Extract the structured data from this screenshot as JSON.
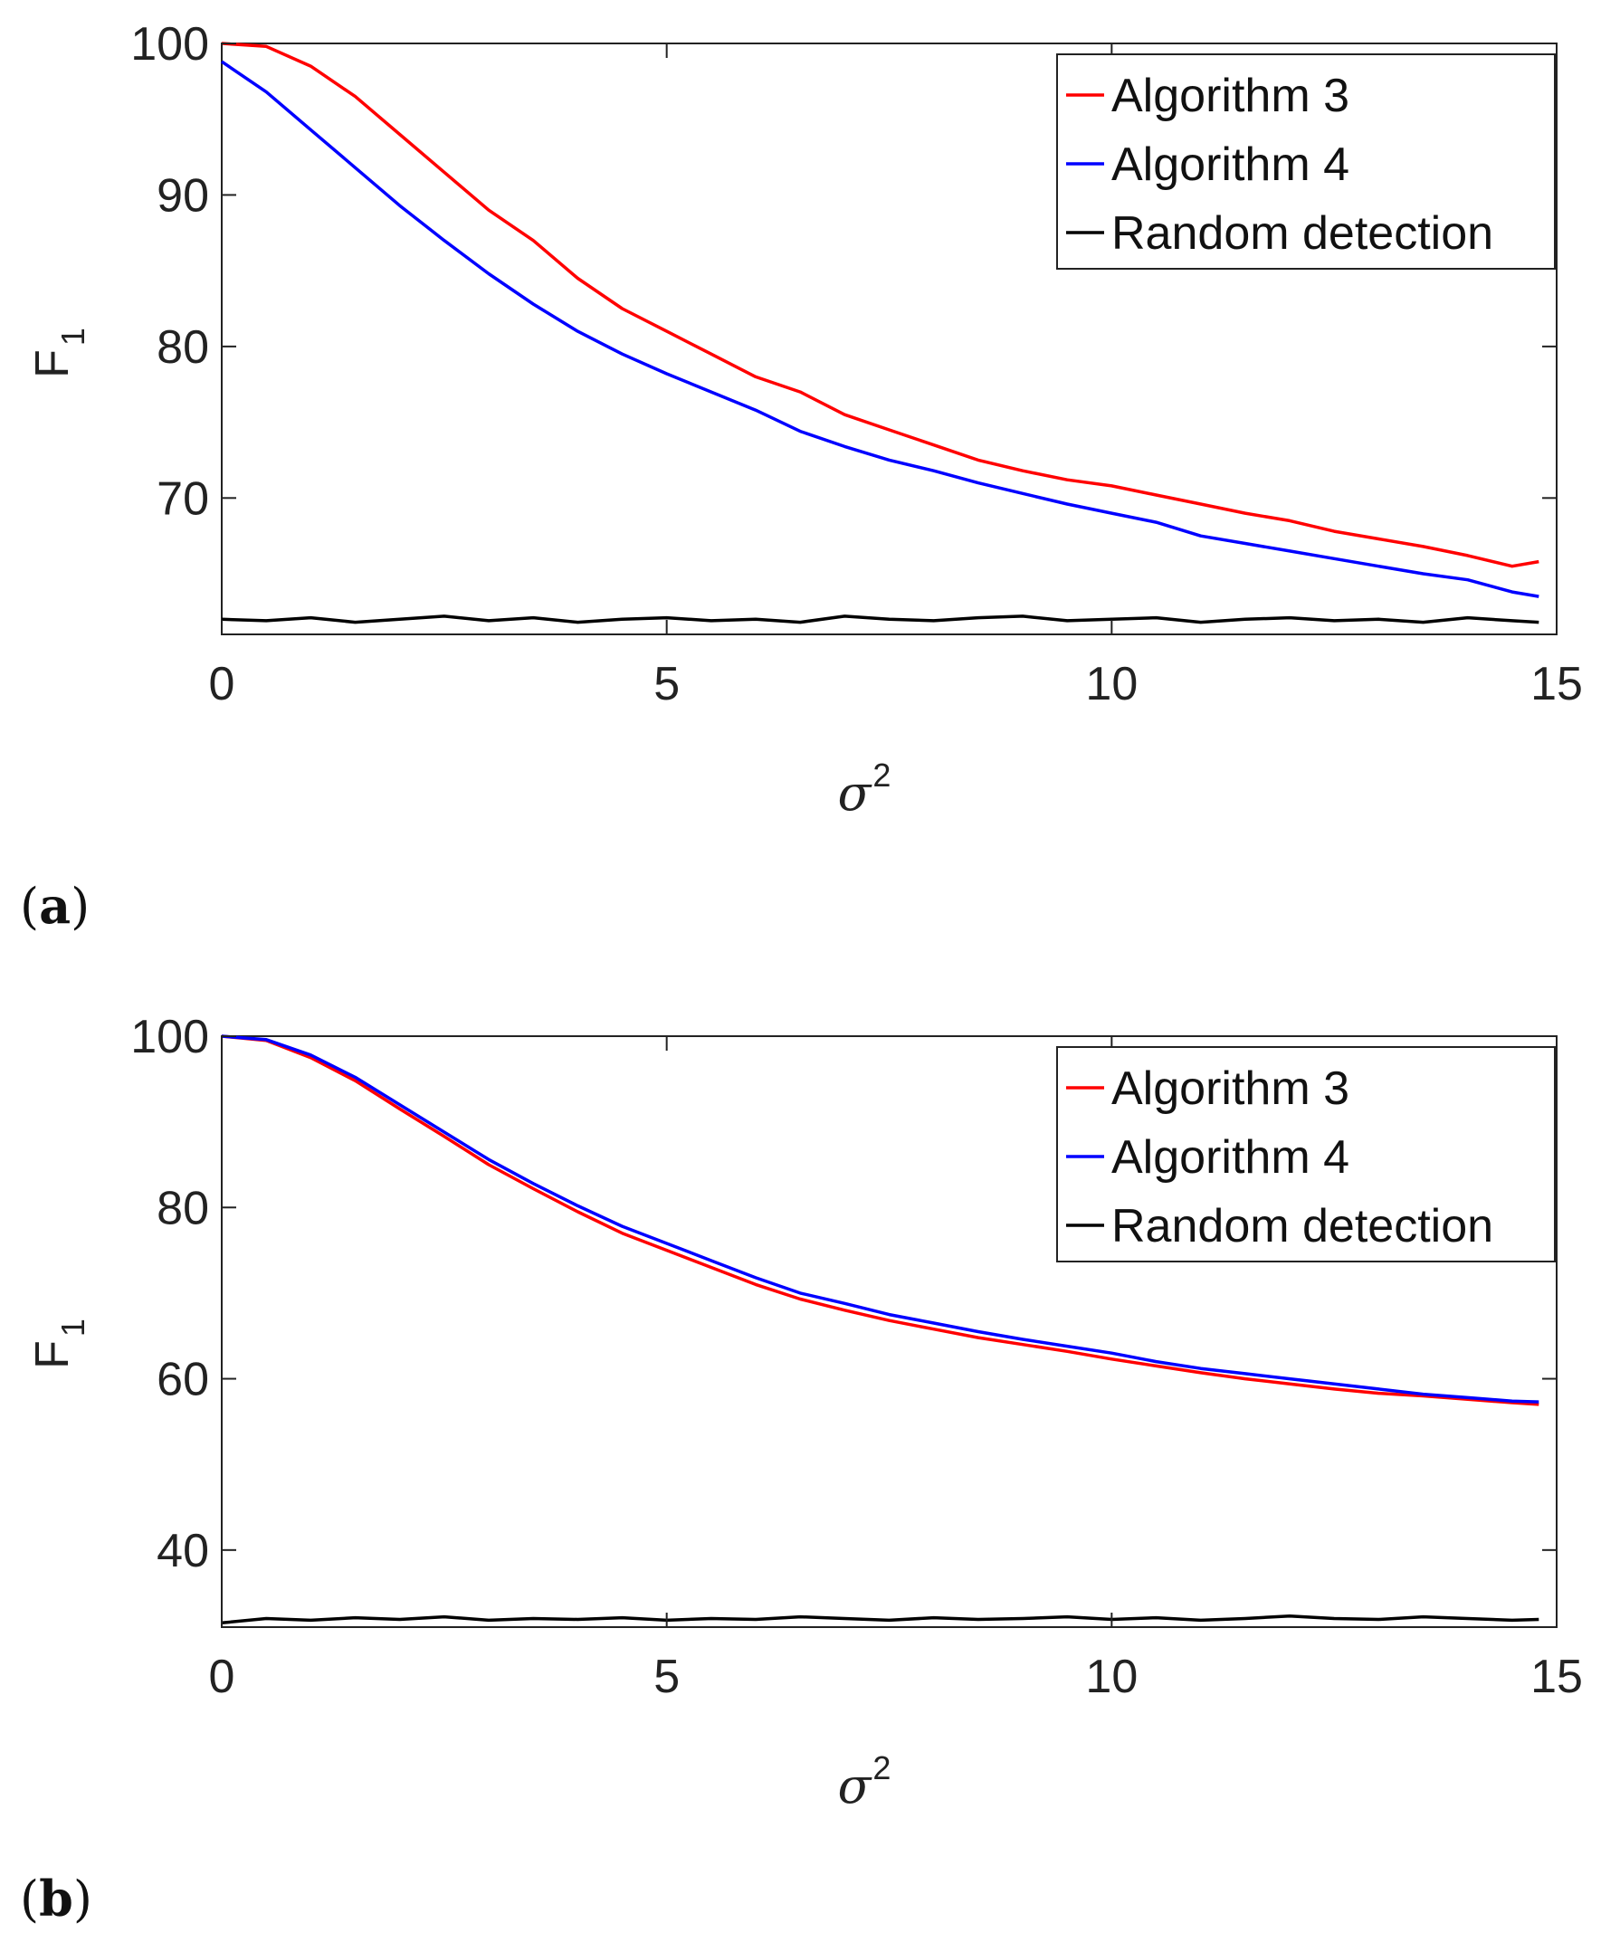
{
  "chart_data": [
    {
      "type": "line",
      "panel_label": "a",
      "xlabel": "σ",
      "xlabel_sup": "2",
      "ylabel": "F",
      "ylabel_sub": "1",
      "xlim": [
        0,
        15
      ],
      "ylim": [
        61,
        100
      ],
      "xticks": [
        0,
        5,
        10,
        15
      ],
      "yticks": [
        70,
        80,
        90,
        100
      ],
      "grid": false,
      "legend_position": "top-right",
      "series": [
        {
          "name": "Algorithm 3",
          "color": "#ff0000",
          "x": [
            0,
            0.5,
            1,
            1.5,
            2,
            2.5,
            3,
            3.5,
            4,
            4.5,
            5,
            5.5,
            6,
            6.5,
            7,
            7.5,
            8,
            8.5,
            9,
            9.5,
            10,
            10.5,
            11,
            11.5,
            12,
            12.5,
            13,
            13.5,
            14,
            14.5,
            14.8
          ],
          "y": [
            100,
            99.8,
            98.5,
            96.5,
            94,
            91.5,
            89,
            87,
            84.5,
            82.5,
            81,
            79.5,
            78,
            77,
            75.5,
            74.5,
            73.5,
            72.5,
            71.8,
            71.2,
            70.8,
            70.2,
            69.6,
            69,
            68.5,
            67.8,
            67.3,
            66.8,
            66.2,
            65.5,
            65.8
          ]
        },
        {
          "name": "Algorithm 4",
          "color": "#0000ff",
          "x": [
            0,
            0.5,
            1,
            1.5,
            2,
            2.5,
            3,
            3.5,
            4,
            4.5,
            5,
            5.5,
            6,
            6.5,
            7,
            7.5,
            8,
            8.5,
            9,
            9.5,
            10,
            10.5,
            11,
            11.5,
            12,
            12.5,
            13,
            13.5,
            14,
            14.5,
            14.8
          ],
          "y": [
            98.8,
            96.8,
            94.3,
            91.8,
            89.3,
            87,
            84.8,
            82.8,
            81,
            79.5,
            78.2,
            77,
            75.8,
            74.4,
            73.4,
            72.5,
            71.8,
            71,
            70.3,
            69.6,
            69,
            68.4,
            67.5,
            67,
            66.5,
            66,
            65.5,
            65,
            64.6,
            63.8,
            63.5
          ]
        },
        {
          "name": "Random detection",
          "color": "#000000",
          "x": [
            0,
            0.5,
            1,
            1.5,
            2,
            2.5,
            3,
            3.5,
            4,
            4.5,
            5,
            5.5,
            6,
            6.5,
            7,
            7.5,
            8,
            8.5,
            9,
            9.5,
            10,
            10.5,
            11,
            11.5,
            12,
            12.5,
            13,
            13.5,
            14,
            14.5,
            14.8
          ],
          "y": [
            62,
            61.9,
            62.1,
            61.8,
            62,
            62.2,
            61.9,
            62.1,
            61.8,
            62,
            62.1,
            61.9,
            62,
            61.8,
            62.2,
            62,
            61.9,
            62.1,
            62.2,
            61.9,
            62,
            62.1,
            61.8,
            62,
            62.1,
            61.9,
            62,
            61.8,
            62.1,
            61.9,
            61.8
          ]
        }
      ]
    },
    {
      "type": "line",
      "panel_label": "b",
      "xlabel": "σ",
      "xlabel_sup": "2",
      "ylabel": "F",
      "ylabel_sub": "1",
      "xlim": [
        0,
        15
      ],
      "ylim": [
        31,
        100
      ],
      "xticks": [
        0,
        5,
        10,
        15
      ],
      "yticks": [
        40,
        60,
        80,
        100
      ],
      "grid": false,
      "legend_position": "top-right",
      "series": [
        {
          "name": "Algorithm 3",
          "color": "#ff0000",
          "x": [
            0,
            0.5,
            1,
            1.5,
            2,
            2.5,
            3,
            3.5,
            4,
            4.5,
            5,
            5.5,
            6,
            6.5,
            7,
            7.5,
            8,
            8.5,
            9,
            9.5,
            10,
            10.5,
            11,
            11.5,
            12,
            12.5,
            13,
            13.5,
            14,
            14.5,
            14.8
          ],
          "y": [
            100,
            99.5,
            97.5,
            94.8,
            91.5,
            88.3,
            85,
            82.2,
            79.5,
            77,
            75,
            73,
            71,
            69.3,
            68,
            66.8,
            65.8,
            64.8,
            64,
            63.2,
            62.3,
            61.5,
            60.7,
            60,
            59.4,
            58.8,
            58.3,
            58,
            57.6,
            57.2,
            57
          ]
        },
        {
          "name": "Algorithm 4",
          "color": "#0000ff",
          "x": [
            0,
            0.5,
            1,
            1.5,
            2,
            2.5,
            3,
            3.5,
            4,
            4.5,
            5,
            5.5,
            6,
            6.5,
            7,
            7.5,
            8,
            8.5,
            9,
            9.5,
            10,
            10.5,
            11,
            11.5,
            12,
            12.5,
            13,
            13.5,
            14,
            14.5,
            14.8
          ],
          "y": [
            100,
            99.6,
            97.8,
            95.2,
            92,
            88.8,
            85.6,
            82.8,
            80.2,
            77.8,
            75.8,
            73.8,
            71.8,
            70,
            68.8,
            67.5,
            66.5,
            65.5,
            64.6,
            63.8,
            63,
            62,
            61.2,
            60.6,
            60,
            59.4,
            58.8,
            58.2,
            57.8,
            57.4,
            57.3
          ]
        },
        {
          "name": "Random detection",
          "color": "#000000",
          "x": [
            0,
            0.5,
            1,
            1.5,
            2,
            2.5,
            3,
            3.5,
            4,
            4.5,
            5,
            5.5,
            6,
            6.5,
            7,
            7.5,
            8,
            8.5,
            9,
            9.5,
            10,
            10.5,
            11,
            11.5,
            12,
            12.5,
            13,
            13.5,
            14,
            14.5,
            14.8
          ],
          "y": [
            31.5,
            32,
            31.8,
            32.1,
            31.9,
            32.2,
            31.8,
            32,
            31.9,
            32.1,
            31.8,
            32,
            31.9,
            32.2,
            32,
            31.8,
            32.1,
            31.9,
            32,
            32.2,
            31.9,
            32.1,
            31.8,
            32,
            32.3,
            32,
            31.9,
            32.2,
            32,
            31.8,
            31.9
          ]
        }
      ]
    }
  ]
}
